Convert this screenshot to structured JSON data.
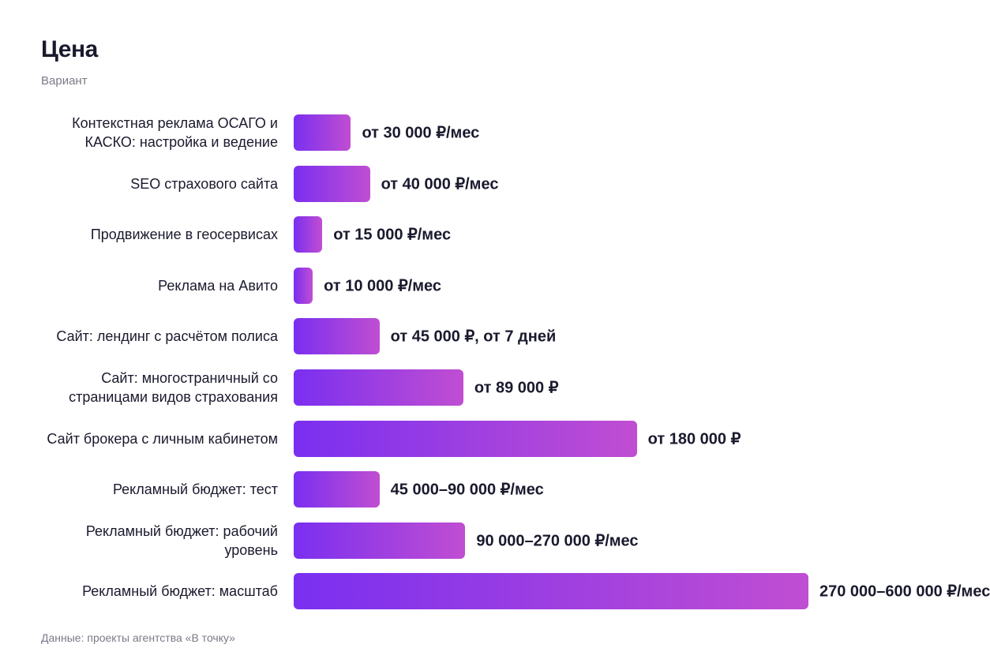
{
  "chart_data": {
    "type": "bar",
    "orientation": "horizontal",
    "title": "Цена",
    "subtitle": "Вариант",
    "categories": [
      "Контекстная реклама ОСАГО и КАСКО: настройка и ведение",
      "SEO страхового сайта",
      "Продвижение в геосервисах",
      "Реклама на Авито",
      "Сайт: лендинг с расчётом полиса",
      "Сайт: многостраничный со страницами видов страхования",
      "Сайт брокера с личным кабинетом",
      "Рекламный бюджет: тест",
      "Рекламный бюджет: рабочий уровень",
      "Рекламный бюджет: масштаб"
    ],
    "values": [
      30000,
      40000,
      15000,
      10000,
      45000,
      89000,
      180000,
      45000,
      90000,
      270000
    ],
    "value_labels": [
      "от 30 000 ₽/мес",
      "от 40 000 ₽/мес",
      "от 15 000 ₽/мес",
      "от 10 000 ₽/мес",
      "от 45 000 ₽, от 7 дней",
      "от 89 000 ₽",
      "от 180 000 ₽",
      "45 000–90 000 ₽/мес",
      "90 000–270 000 ₽/мес",
      "270 000–600 000 ₽/мес"
    ],
    "footnote": "Данные: проекты агентства «В точку»"
  }
}
